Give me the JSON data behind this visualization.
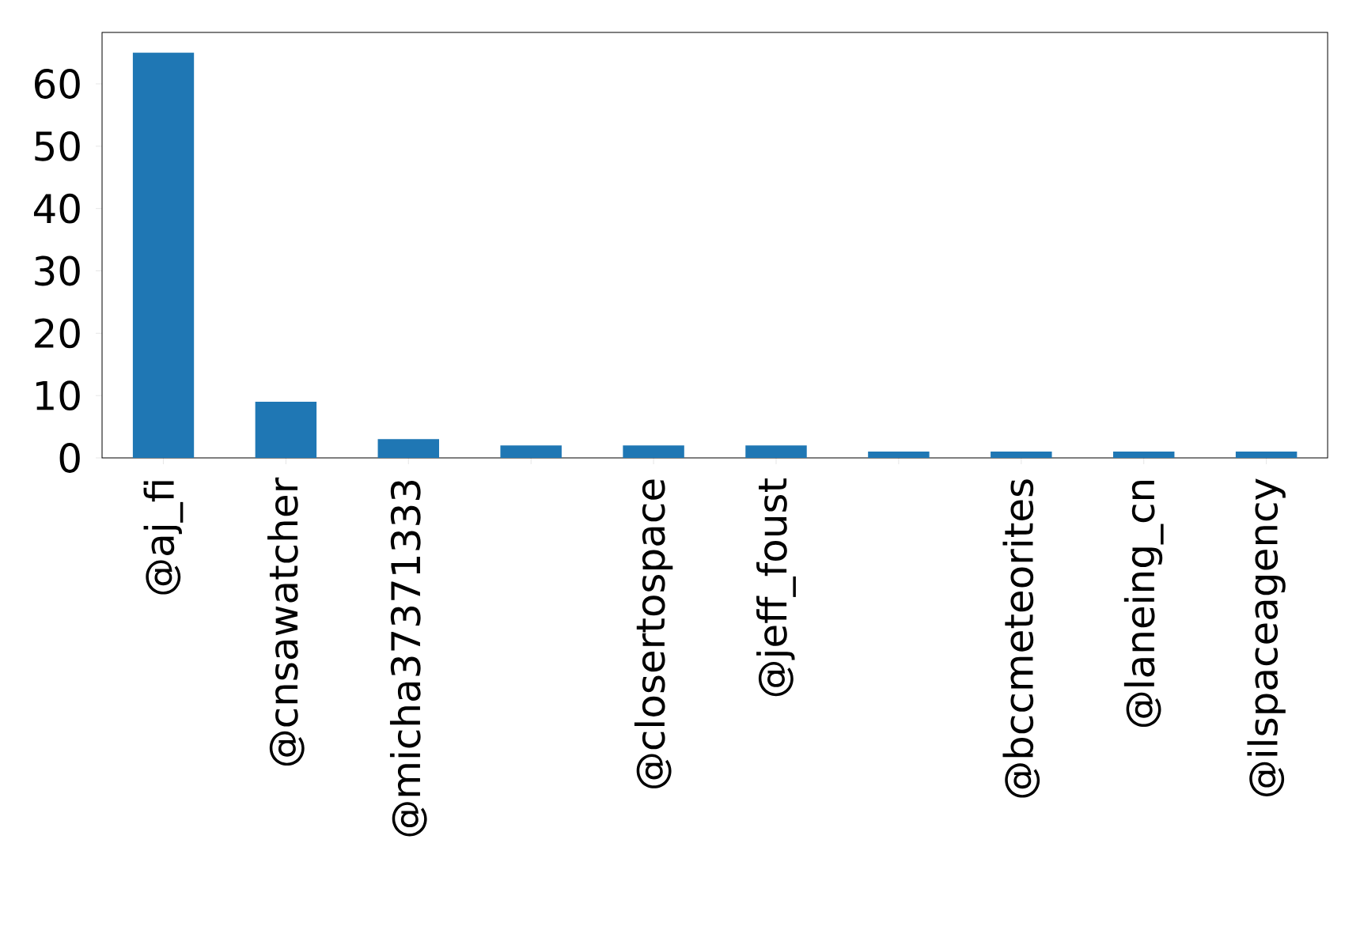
{
  "chart_data": {
    "type": "bar",
    "categories": [
      "@aj_fi",
      "@cnsawatcher",
      "@micha37371333",
      null,
      "@closertospace",
      "@jeff_foust",
      null,
      "@bccmeteorites",
      "@laneing_cn",
      "@ilspaceagency"
    ],
    "values": [
      65,
      9,
      3,
      2,
      2,
      2,
      1,
      1,
      1,
      1
    ],
    "color": "#1f77b4",
    "ylim": [
      0,
      68.25
    ],
    "yticks": [
      0,
      10,
      20,
      30,
      40,
      50,
      60
    ],
    "grid": false
  }
}
